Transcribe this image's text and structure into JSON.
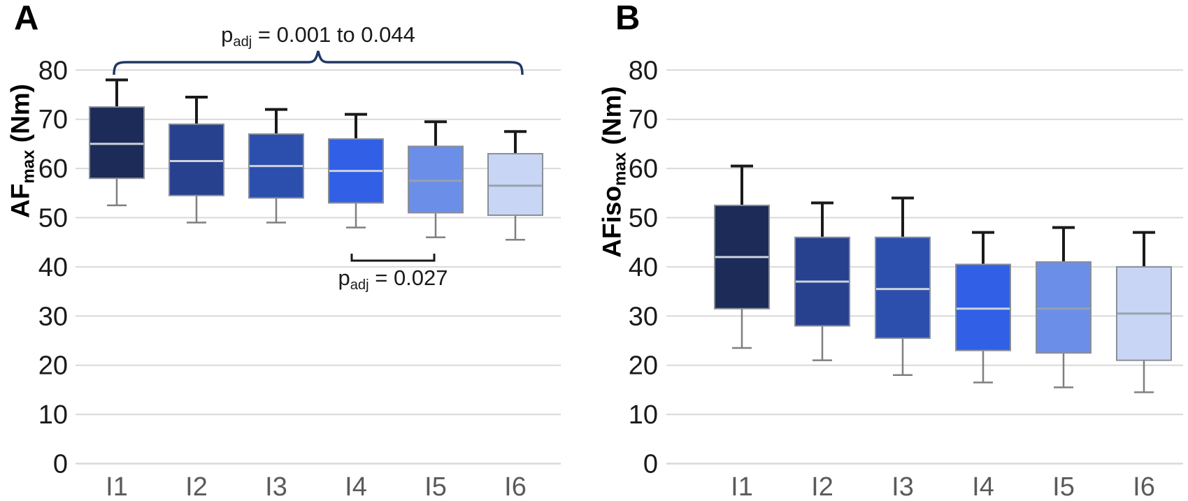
{
  "figure": {
    "background": "#FFFFFF",
    "grid_color": "#D9D9D9",
    "y_tick_color": "#1A1A1A",
    "x_tick_color": "#5A5A5A",
    "box_border_color": "#8A8F98",
    "upper_whisker_color": "#1A1A1A",
    "lower_whisker_color": "#7F7F7F",
    "panels": [
      {
        "letter": "A",
        "y_title_prefix": "AF",
        "y_title_sub": "max",
        "y_title_suffix": " (Nm)"
      },
      {
        "letter": "B",
        "y_title_prefix": "AFiso",
        "y_title_sub": "max",
        "y_title_suffix": " (Nm)"
      }
    ]
  },
  "chart_data": [
    {
      "type": "box",
      "panel": "A",
      "ylabel": "AFmax (Nm)",
      "ylim": [
        0,
        80
      ],
      "yticks": [
        0,
        10,
        20,
        30,
        40,
        50,
        60,
        70,
        80
      ],
      "grid": true,
      "legend": "none",
      "categories": [
        "I1",
        "I2",
        "I3",
        "I4",
        "I5",
        "I6"
      ],
      "series": [
        {
          "name": "I1",
          "whisker_low": 52.5,
          "q1": 58,
          "median": 65,
          "q3": 72.5,
          "whisker_high": 78,
          "color": "#1D2B58",
          "median_color": "#CDD3DC"
        },
        {
          "name": "I2",
          "whisker_low": 49,
          "q1": 54.5,
          "median": 61.5,
          "q3": 69,
          "whisker_high": 74.5,
          "color": "#27418F",
          "median_color": "#CDD3DC"
        },
        {
          "name": "I3",
          "whisker_low": 49,
          "q1": 54,
          "median": 60.5,
          "q3": 67,
          "whisker_high": 72,
          "color": "#2C4FAE",
          "median_color": "#CDD3DC"
        },
        {
          "name": "I4",
          "whisker_low": 48,
          "q1": 53,
          "median": 59.5,
          "q3": 66,
          "whisker_high": 71,
          "color": "#3160E6",
          "median_color": "#CDD3DC"
        },
        {
          "name": "I5",
          "whisker_low": 46,
          "q1": 51,
          "median": 57.5,
          "q3": 64.5,
          "whisker_high": 69.5,
          "color": "#6B8EE9",
          "median_color": "#97A0AF"
        },
        {
          "name": "I6",
          "whisker_low": 45.5,
          "q1": 50.5,
          "median": 56.5,
          "q3": 63,
          "whisker_high": 67.5,
          "color": "#C8D5F5",
          "median_color": "#9AA1B0"
        }
      ],
      "annotations": [
        {
          "style": "brace-top",
          "from": "I1",
          "to": "I6",
          "color": "#1F3864",
          "p_prefix": "p",
          "p_sub": "adj",
          "p_text": " = 0.001 to 0.044"
        },
        {
          "style": "bracket-below",
          "from": "I4",
          "to": "I5",
          "color": "#1A1A1A",
          "p_prefix": "p",
          "p_sub": "adj",
          "p_text": " = 0.027"
        }
      ]
    },
    {
      "type": "box",
      "panel": "B",
      "ylabel": "AFisomax (Nm)",
      "ylim": [
        0,
        80
      ],
      "yticks": [
        0,
        10,
        20,
        30,
        40,
        50,
        60,
        70,
        80
      ],
      "grid": true,
      "legend": "none",
      "categories": [
        "I1",
        "I2",
        "I3",
        "I4",
        "I5",
        "I6"
      ],
      "series": [
        {
          "name": "I1",
          "whisker_low": 23.5,
          "q1": 31.5,
          "median": 42,
          "q3": 52.5,
          "whisker_high": 60.5,
          "color": "#1D2B58",
          "median_color": "#CDD3DC"
        },
        {
          "name": "I2",
          "whisker_low": 21,
          "q1": 28,
          "median": 37,
          "q3": 46,
          "whisker_high": 53,
          "color": "#27418F",
          "median_color": "#CDD3DC"
        },
        {
          "name": "I3",
          "whisker_low": 18,
          "q1": 25.5,
          "median": 35.5,
          "q3": 46,
          "whisker_high": 54,
          "color": "#2C4FAE",
          "median_color": "#CDD3DC"
        },
        {
          "name": "I4",
          "whisker_low": 16.5,
          "q1": 23,
          "median": 31.5,
          "q3": 40.5,
          "whisker_high": 47,
          "color": "#3160E6",
          "median_color": "#CDD3DC"
        },
        {
          "name": "I5",
          "whisker_low": 15.5,
          "q1": 22.5,
          "median": 31.5,
          "q3": 41,
          "whisker_high": 48,
          "color": "#6B8EE9",
          "median_color": "#97A0AF"
        },
        {
          "name": "I6",
          "whisker_low": 14.5,
          "q1": 21,
          "median": 30.5,
          "q3": 40,
          "whisker_high": 47,
          "color": "#C8D5F5",
          "median_color": "#9AA1B0"
        }
      ],
      "annotations": []
    }
  ]
}
